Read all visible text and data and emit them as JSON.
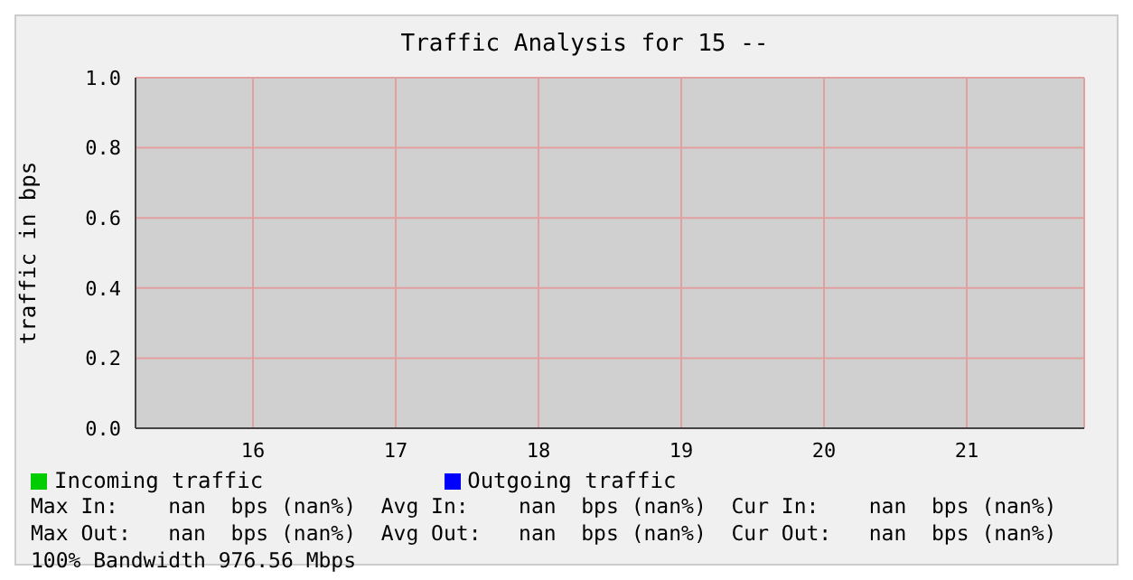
{
  "chart_data": {
    "type": "line",
    "title": "Traffic Analysis for 15 --",
    "ylabel": "traffic in bps",
    "categories": [
      "16",
      "17",
      "18",
      "19",
      "20",
      "21"
    ],
    "series": [
      {
        "name": "Incoming traffic",
        "color": "#00cc00",
        "values": [
          null,
          null,
          null,
          null,
          null,
          null
        ]
      },
      {
        "name": "Outgoing traffic",
        "color": "#0000ff",
        "values": [
          null,
          null,
          null,
          null,
          null,
          null
        ]
      }
    ],
    "ylim": [
      0,
      1
    ],
    "yticks": [
      {
        "value": 0,
        "label": "0.0"
      },
      {
        "value": 0.2,
        "label": "0.2"
      },
      {
        "value": 0.4,
        "label": "0.4"
      },
      {
        "value": 0.6,
        "label": "0.6"
      },
      {
        "value": 0.8,
        "label": "0.8"
      },
      {
        "value": 1,
        "label": "1.0"
      }
    ],
    "grid": true,
    "legend": "bottom",
    "annotations": [
      "Max In:    nan  bps (nan%)  Avg In:    nan  bps (nan%)  Cur In:    nan  bps (nan%)",
      "Max Out:   nan  bps (nan%)  Avg Out:   nan  bps (nan%)  Cur Out:   nan  bps (nan%)",
      "100% Bandwidth 976.56 Mbps"
    ]
  }
}
